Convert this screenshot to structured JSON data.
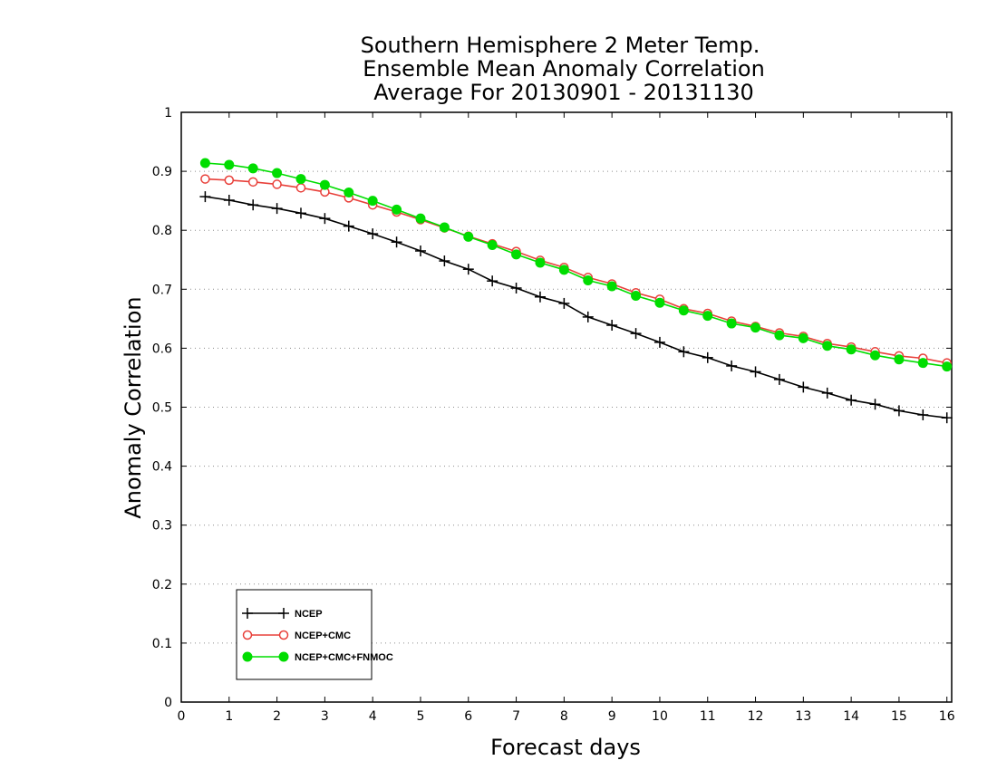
{
  "chart_data": {
    "type": "line",
    "title": [
      "Southern Hemisphere 2 Meter Temp.",
      "Ensemble Mean Anomaly Correlation",
      "Average For 20130901 - 20131130"
    ],
    "xlabel": "Forecast days",
    "ylabel": "Anomaly Correlation",
    "xlim": [
      0,
      16.1
    ],
    "ylim": [
      0,
      1
    ],
    "xticks": [
      0,
      1,
      2,
      3,
      4,
      5,
      6,
      7,
      8,
      9,
      10,
      11,
      12,
      13,
      14,
      15,
      16
    ],
    "yticks": [
      0,
      0.1,
      0.2,
      0.3,
      0.4,
      0.5,
      0.6,
      0.7,
      0.8,
      0.9,
      1
    ],
    "ytick_labels": [
      "0",
      "0.1",
      "0.2",
      "0.3",
      "0.4",
      "0.5",
      "0.6",
      "0.7",
      "0.8",
      "0.9",
      "1"
    ],
    "grid": "horizontal-dotted",
    "legend_position": "bottom-left",
    "x": [
      0.5,
      1.0,
      1.5,
      2.0,
      2.5,
      3.0,
      3.5,
      4.0,
      4.5,
      5.0,
      5.5,
      6.0,
      6.5,
      7.0,
      7.5,
      8.0,
      8.5,
      9.0,
      9.5,
      10.0,
      10.5,
      11.0,
      11.5,
      12.0,
      12.5,
      13.0,
      13.5,
      14.0,
      14.5,
      15.0,
      15.5,
      16.0
    ],
    "series": [
      {
        "name": "NCEP",
        "color": "#000000",
        "marker": "plus",
        "values": [
          0.857,
          0.851,
          0.843,
          0.837,
          0.829,
          0.82,
          0.807,
          0.794,
          0.78,
          0.765,
          0.748,
          0.734,
          0.714,
          0.702,
          0.687,
          0.676,
          0.653,
          0.639,
          0.625,
          0.61,
          0.594,
          0.584,
          0.57,
          0.56,
          0.547,
          0.534,
          0.524,
          0.512,
          0.505,
          0.494,
          0.487,
          0.482
        ]
      },
      {
        "name": "NCEP+CMC",
        "color": "#e8403a",
        "marker": "open-circle",
        "values": [
          0.887,
          0.885,
          0.882,
          0.878,
          0.872,
          0.865,
          0.855,
          0.843,
          0.831,
          0.818,
          0.804,
          0.79,
          0.777,
          0.764,
          0.749,
          0.737,
          0.72,
          0.709,
          0.694,
          0.683,
          0.667,
          0.659,
          0.646,
          0.637,
          0.626,
          0.62,
          0.608,
          0.602,
          0.594,
          0.587,
          0.583,
          0.575
        ]
      },
      {
        "name": "NCEP+CMC+FNMOC",
        "color": "#00dd00",
        "marker": "filled-circle",
        "values": [
          0.914,
          0.911,
          0.905,
          0.897,
          0.887,
          0.877,
          0.864,
          0.85,
          0.835,
          0.82,
          0.805,
          0.789,
          0.775,
          0.759,
          0.745,
          0.733,
          0.715,
          0.705,
          0.689,
          0.677,
          0.664,
          0.655,
          0.642,
          0.635,
          0.622,
          0.617,
          0.604,
          0.598,
          0.588,
          0.581,
          0.575,
          0.569
        ]
      }
    ]
  }
}
